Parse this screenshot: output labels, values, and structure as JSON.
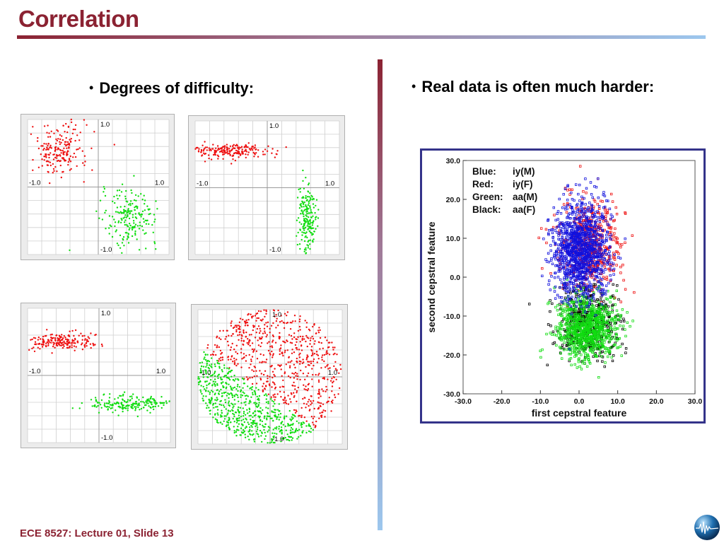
{
  "slide": {
    "title": "Correlation",
    "left_bullet": "Degrees of difficulty:",
    "right_bullet": "Real data is often much harder:",
    "footer": "ECE 8527: Lecture 01, Slide 13"
  },
  "colors": {
    "title": "#8b2232",
    "class_a": "#ee1111",
    "class_b": "#11dd11",
    "blue": "#1111dd",
    "black": "#000000",
    "frame": "#34338a"
  },
  "icons": {
    "bullet": "bullet-dot-icon",
    "logo": "globe-logo-icon"
  },
  "chart_data": [
    {
      "type": "scatter",
      "title": "",
      "xlim": [
        -1.0,
        1.0
      ],
      "ylim": [
        -1.0,
        1.0
      ],
      "tick_labels": {
        "x_left": "-1.0",
        "x_right": "1.0",
        "y_top": "1.0",
        "y_bottom": "-1.0"
      },
      "grid": true,
      "series": [
        {
          "color": "#ee1111",
          "distribution": "round cluster",
          "center": [
            -0.55,
            0.55
          ],
          "spread": [
            0.2,
            0.2
          ],
          "points": 200
        },
        {
          "color": "#11dd11",
          "distribution": "round cluster",
          "center": [
            0.45,
            -0.45
          ],
          "spread": [
            0.2,
            0.2
          ],
          "points": 200
        }
      ]
    },
    {
      "type": "scatter",
      "title": "",
      "xlim": [
        -1.0,
        1.0
      ],
      "ylim": [
        -1.0,
        1.0
      ],
      "tick_labels": {
        "x_left": "-1.0",
        "x_right": "1.0",
        "y_top": "1.0",
        "y_bottom": "-1.0"
      },
      "grid": true,
      "series": [
        {
          "color": "#ee1111",
          "distribution": "horizontal cluster",
          "center": [
            -0.5,
            0.55
          ],
          "spread": [
            0.28,
            0.06
          ],
          "points": 200
        },
        {
          "color": "#11dd11",
          "distribution": "vertical cluster",
          "center": [
            0.55,
            -0.45
          ],
          "spread": [
            0.06,
            0.25
          ],
          "points": 200
        }
      ]
    },
    {
      "type": "scatter",
      "title": "",
      "xlim": [
        -1.0,
        1.0
      ],
      "ylim": [
        -1.0,
        1.0
      ],
      "tick_labels": {
        "x_left": "-1.0",
        "x_right": "1.0",
        "y_top": "1.0",
        "y_bottom": "-1.0"
      },
      "grid": true,
      "series": [
        {
          "color": "#ee1111",
          "distribution": "horizontal cluster",
          "center": [
            -0.55,
            0.5
          ],
          "spread": [
            0.28,
            0.06
          ],
          "points": 200
        },
        {
          "color": "#11dd11",
          "distribution": "horizontal cluster",
          "center": [
            0.45,
            -0.42
          ],
          "spread": [
            0.28,
            0.06
          ],
          "points": 200
        }
      ]
    },
    {
      "type": "scatter",
      "title": "",
      "xlim": [
        -1.0,
        1.0
      ],
      "ylim": [
        -1.0,
        1.0
      ],
      "tick_labels": {
        "x_left": "-1.0",
        "x_right": "1.0",
        "y_top": "1.0",
        "y_bottom": "-1.0"
      },
      "grid": true,
      "series": [
        {
          "color": "#ee1111",
          "distribution": "disk region upper-right",
          "center": [
            0,
            0
          ],
          "radius": 1.0,
          "points": 650
        },
        {
          "color": "#11dd11",
          "distribution": "disk region lower-left",
          "center": [
            0,
            0
          ],
          "radius": 1.0,
          "points": 650
        }
      ]
    },
    {
      "type": "scatter",
      "title": "",
      "xlabel": "first cepstral feature",
      "ylabel": "second cepstral feature",
      "xlim": [
        -30.0,
        30.0
      ],
      "ylim": [
        -30.0,
        30.0
      ],
      "x_ticks": [
        "-30.0",
        "-20.0",
        "-10.0",
        "0.0",
        "10.0",
        "20.0",
        "30.0"
      ],
      "y_ticks": [
        "30.0",
        "20.0",
        "10.0",
        "0.0",
        "-10.0",
        "-20.0",
        "-30.0"
      ],
      "grid": false,
      "legend": [
        {
          "label": "Blue:",
          "value": "iy(M)"
        },
        {
          "label": "Red:",
          "value": "iy(F)"
        },
        {
          "label": "Green:",
          "value": "aa(M)"
        },
        {
          "label": "Black:",
          "value": "aa(F)"
        }
      ],
      "legend_position": "top-left",
      "series": [
        {
          "color": "#ee1111",
          "center": [
            3.0,
            8.0
          ],
          "spread": [
            3.8,
            6.0
          ],
          "points": 500
        },
        {
          "color": "#000000",
          "center": [
            2.5,
            -12.0
          ],
          "spread": [
            4.0,
            4.5
          ],
          "points": 450
        },
        {
          "color": "#11dd11",
          "center": [
            2.0,
            -13.0
          ],
          "spread": [
            3.8,
            4.0
          ],
          "points": 900
        },
        {
          "color": "#1111dd",
          "center": [
            0.5,
            7.0
          ],
          "spread": [
            3.5,
            6.0
          ],
          "points": 1200
        }
      ]
    }
  ]
}
